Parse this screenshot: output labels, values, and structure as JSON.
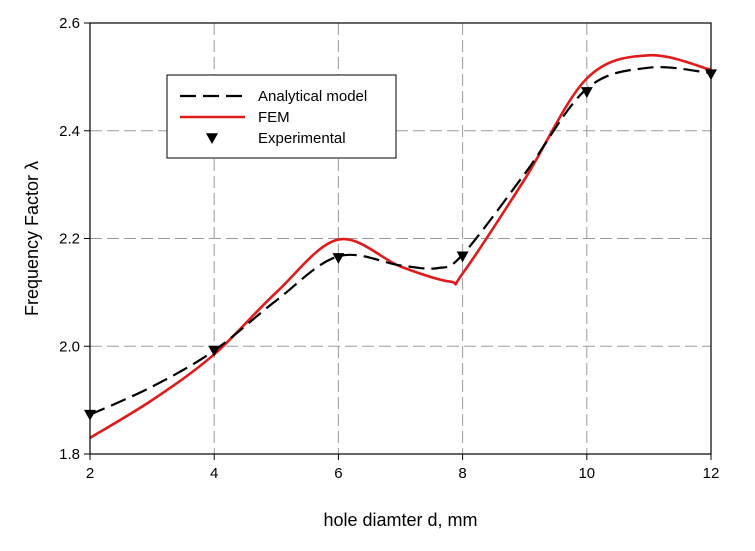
{
  "chart_data": {
    "type": "line",
    "title": "",
    "xlabel": "hole diamter d, mm",
    "ylabel": "Frequency Factor λ",
    "xlim": [
      2,
      12
    ],
    "ylim": [
      1.8,
      2.6
    ],
    "xticks": [
      2,
      4,
      6,
      8,
      10,
      12
    ],
    "yticks": [
      1.8,
      2.0,
      2.2,
      2.4,
      2.6
    ],
    "xtick_labels": [
      "2",
      "4",
      "6",
      "8",
      "10",
      "12"
    ],
    "ytick_labels": [
      "1.8",
      "2.0",
      "2.2",
      "2.4",
      "2.6"
    ],
    "grid": true,
    "legend_position": "top-left",
    "series": [
      {
        "name": "Analytical model",
        "style": "dashed",
        "color": "#000000",
        "x": [
          2,
          3,
          4,
          5,
          6,
          7,
          7.6,
          8,
          9,
          10,
          11,
          12
        ],
        "y": [
          1.873,
          1.925,
          1.992,
          2.085,
          2.167,
          2.15,
          2.145,
          2.17,
          2.32,
          2.478,
          2.517,
          2.507
        ]
      },
      {
        "name": "FEM",
        "style": "solid",
        "color": "#e01b1b",
        "x": [
          2,
          3,
          4,
          5,
          6,
          7,
          7.8,
          8,
          9,
          10,
          11,
          12
        ],
        "y": [
          1.83,
          1.9,
          1.985,
          2.1,
          2.198,
          2.148,
          2.12,
          2.135,
          2.31,
          2.497,
          2.54,
          2.513
        ]
      },
      {
        "name": "Experimental",
        "style": "marker",
        "marker": "triangle-down",
        "color": "#000000",
        "x": [
          2,
          4,
          6,
          8,
          10,
          12
        ],
        "y": [
          1.873,
          1.992,
          2.164,
          2.167,
          2.472,
          2.505
        ]
      }
    ]
  }
}
